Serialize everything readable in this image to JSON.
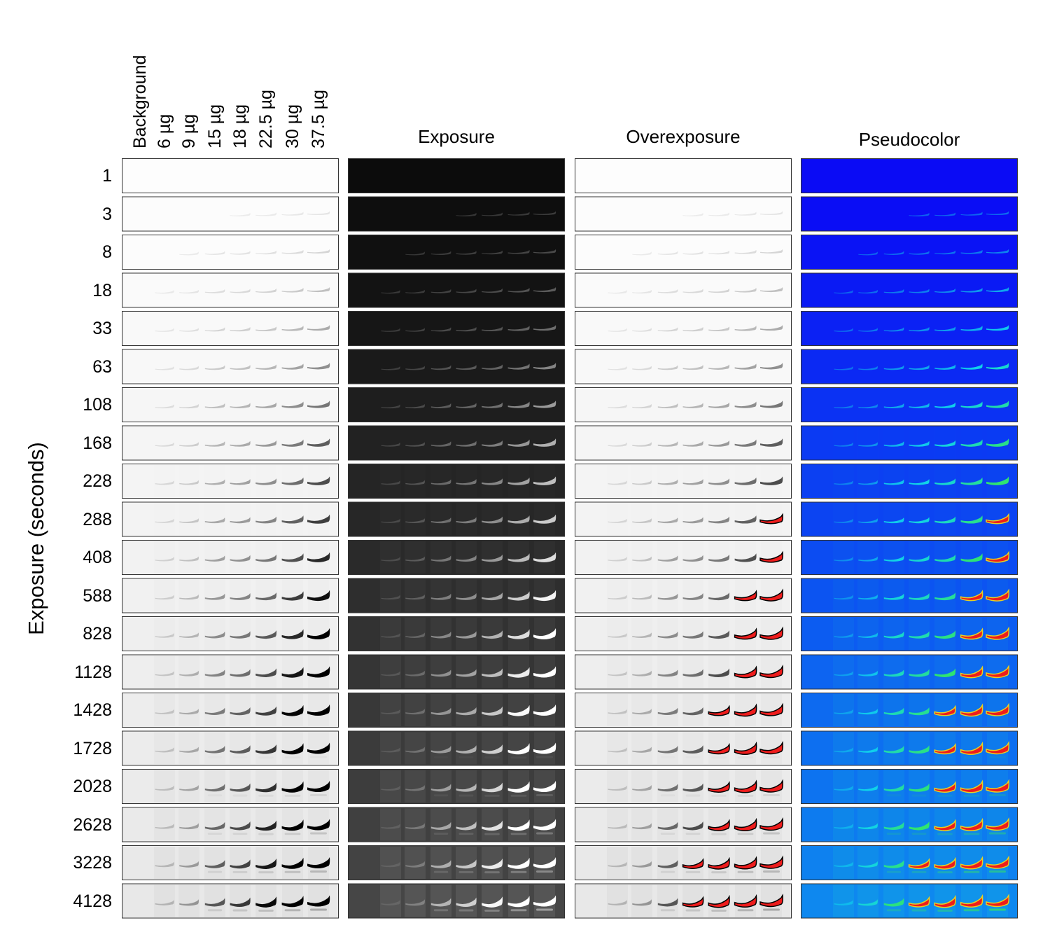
{
  "figure": {
    "y_axis_title": "Exposure (seconds)",
    "panel_titles": [
      "",
      "Exposure",
      "Overexposure",
      "Pseudocolor"
    ],
    "panel_modes": [
      "inverted",
      "exposure",
      "overexposure",
      "pseudocolor"
    ],
    "lane_labels": [
      "Background",
      "6 µg",
      "9 µg",
      "15 µg",
      "18 µg",
      "22.5 µg",
      "30 µg",
      "37.5 µg"
    ],
    "lane_loads_ug": [
      0,
      6,
      9,
      15,
      18,
      22.5,
      30,
      37.5
    ],
    "exposure_labels": [
      "1",
      "3",
      "8",
      "18",
      "33",
      "63",
      "108",
      "168",
      "228",
      "288",
      "408",
      "588",
      "828",
      "1128",
      "1428",
      "1728",
      "2028",
      "2628",
      "3228",
      "4128"
    ],
    "exposures_s": [
      1,
      3,
      8,
      18,
      33,
      63,
      108,
      168,
      228,
      288,
      408,
      588,
      828,
      1128,
      1428,
      1728,
      2028,
      2628,
      3228,
      4128
    ],
    "colors": {
      "frame": "#333333",
      "saturated_overlay": "#ee1c1c",
      "pseudocolor_low": "#0a0af5",
      "pseudocolor_mid": "#10e0e0",
      "pseudocolor_high": "#30e030"
    }
  }
}
